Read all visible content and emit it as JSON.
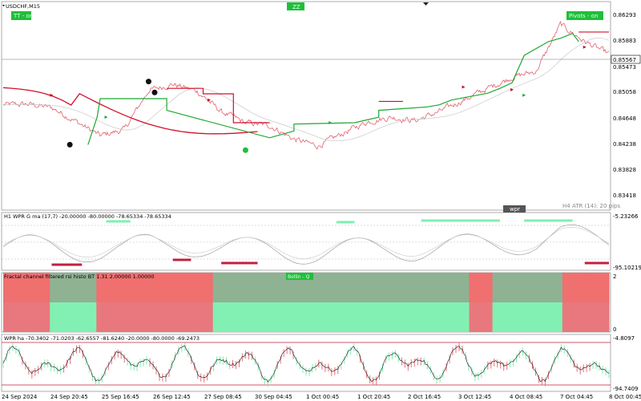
{
  "symbol_title": "USDCHF,M15",
  "badges": {
    "top_left": "TT - on",
    "top_center": "ZZ",
    "top_right": "Pivots - on",
    "wpr_tab": "wpr",
    "fractal_badge": "Bollin - Q"
  },
  "colors": {
    "background": "#ffffff",
    "price": "#e0606e",
    "red_line": "#d0102a",
    "green_line": "#1fa832",
    "badge_green": "#1fbf3a",
    "mint": "#7ef0b0",
    "salmon": "#f06a6a",
    "pink_bar": "#e8737a",
    "gray_green": "#8ab08e",
    "gray": "#b0b0b0"
  },
  "main_pane": {
    "price_labels": [
      "0.86293",
      "0.85883",
      "0.85567",
      "0.85473",
      "0.85058",
      "0.84648",
      "0.84238",
      "0.83828",
      "0.83418"
    ],
    "current_price": "0.85567",
    "atr_label": "H4 ATR (14): 20 pips"
  },
  "wpr_pane": {
    "title": "H1 WPR G ma (17,7) -20.00000 -80.00000 -78.65334 -78.65334",
    "scale_top": "-5.23266",
    "scale_bottom": "-95.10219"
  },
  "fractal_pane": {
    "title": "Fractal channel filtered rsi histo BT 1.31 2.00000 1.00000",
    "scale_top": "2",
    "scale_bottom": "0"
  },
  "wpr_ha_pane": {
    "title": "WPR ha -70.3402 -71.0203 -62.6557 -81.6240 -20.0000 -80.0000 -69.2473",
    "scale_top": "-4.8097",
    "scale_bottom": "-94.7409"
  },
  "time_labels": [
    "24 Sep 2024",
    "24 Sep 20:45",
    "25 Sep 16:45",
    "26 Sep 12:45",
    "27 Sep 08:45",
    "30 Sep 04:45",
    "1 Oct 00:45",
    "1 Oct 20:45",
    "2 Oct 16:45",
    "3 Oct 12:45",
    "4 Oct 08:45",
    "7 Oct 04:45",
    "8 Oct 00:45"
  ],
  "chart_data": {
    "type": "line",
    "ylim": [
      0.8337,
      0.8636
    ],
    "x": [
      0,
      4,
      8,
      12,
      16,
      20,
      24,
      28,
      32,
      36,
      40,
      44,
      48,
      52,
      56,
      60,
      64,
      68,
      72,
      76,
      80,
      84,
      88,
      92,
      96,
      100
    ],
    "series": [
      {
        "values": [
          0.8488,
          0.8489,
          0.8484,
          0.8464,
          0.8443,
          0.8452,
          0.8509,
          0.8518,
          0.8508,
          0.8478,
          0.8462,
          0.8458,
          0.8438,
          0.8428,
          0.8446,
          0.8463,
          0.847,
          0.8465,
          0.8478,
          0.8495,
          0.8512,
          0.8528,
          0.8537,
          0.8605,
          0.858,
          0.8562
        ]
      }
    ],
    "histogram_state": [
      "red",
      "red",
      "gray-green",
      "gray-green",
      "red",
      "red",
      "red",
      "red",
      "red",
      "gray-green",
      "gray-green",
      "gray-green",
      "gray-green",
      "gray-green",
      "gray-green",
      "gray-green",
      "gray-green",
      "gray-green",
      "gray-green",
      "gray-green",
      "red",
      "gray-green",
      "gray-green",
      "gray-green",
      "red",
      "red"
    ]
  }
}
